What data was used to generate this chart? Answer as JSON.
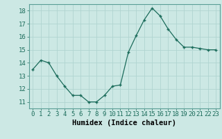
{
  "x": [
    0,
    1,
    2,
    3,
    4,
    5,
    6,
    7,
    8,
    9,
    10,
    11,
    12,
    13,
    14,
    15,
    16,
    17,
    18,
    19,
    20,
    21,
    22,
    23
  ],
  "y": [
    13.5,
    14.2,
    14.0,
    13.0,
    12.2,
    11.5,
    11.5,
    11.0,
    11.0,
    11.5,
    12.2,
    12.3,
    14.8,
    16.1,
    17.3,
    18.2,
    17.6,
    16.6,
    15.8,
    15.2,
    15.2,
    15.1,
    15.0,
    15.0
  ],
  "xlabel": "Humidex (Indice chaleur)",
  "ylim": [
    10.5,
    18.5
  ],
  "xlim": [
    -0.5,
    23.5
  ],
  "yticks": [
    11,
    12,
    13,
    14,
    15,
    16,
    17,
    18
  ],
  "xticks": [
    0,
    1,
    2,
    3,
    4,
    5,
    6,
    7,
    8,
    9,
    10,
    11,
    12,
    13,
    14,
    15,
    16,
    17,
    18,
    19,
    20,
    21,
    22,
    23
  ],
  "line_color": "#1a6b5a",
  "marker": "+",
  "bg_color": "#cce8e4",
  "grid_color": "#b0d4d0",
  "tick_label_fontsize": 6.5,
  "xlabel_fontsize": 7.5
}
